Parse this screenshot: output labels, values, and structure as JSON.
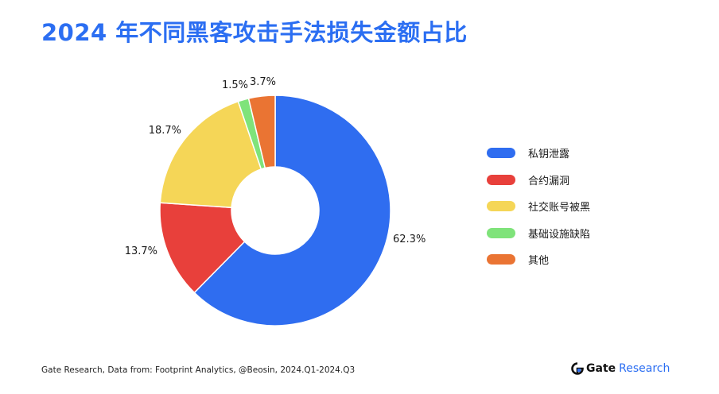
{
  "title": "2024 年不同黑客攻击手法损失金额占比",
  "chart_data": {
    "type": "pie",
    "variant": "donut",
    "title": "2024 年不同黑客攻击手法损失金额占比",
    "legend_position": "right",
    "categories": [
      "私钥泄露",
      "合约漏洞",
      "社交账号被黑",
      "基础设施缺陷",
      "其他"
    ],
    "values": [
      62.3,
      13.7,
      18.7,
      1.5,
      3.7
    ],
    "labels": [
      "62.3%",
      "13.7%",
      "18.7%",
      "1.5%",
      "3.7%"
    ],
    "colors": [
      "#2f6df0",
      "#e8403b",
      "#f5d657",
      "#7fe37a",
      "#ea7433"
    ]
  },
  "footer": {
    "source": "Gate Research, Data from: Footprint Analytics, @Beosin, 2024.Q1-2024.Q3"
  },
  "brand": {
    "name": "Gate",
    "suffix": "Research",
    "logo_icon": "gate-logo-icon"
  }
}
